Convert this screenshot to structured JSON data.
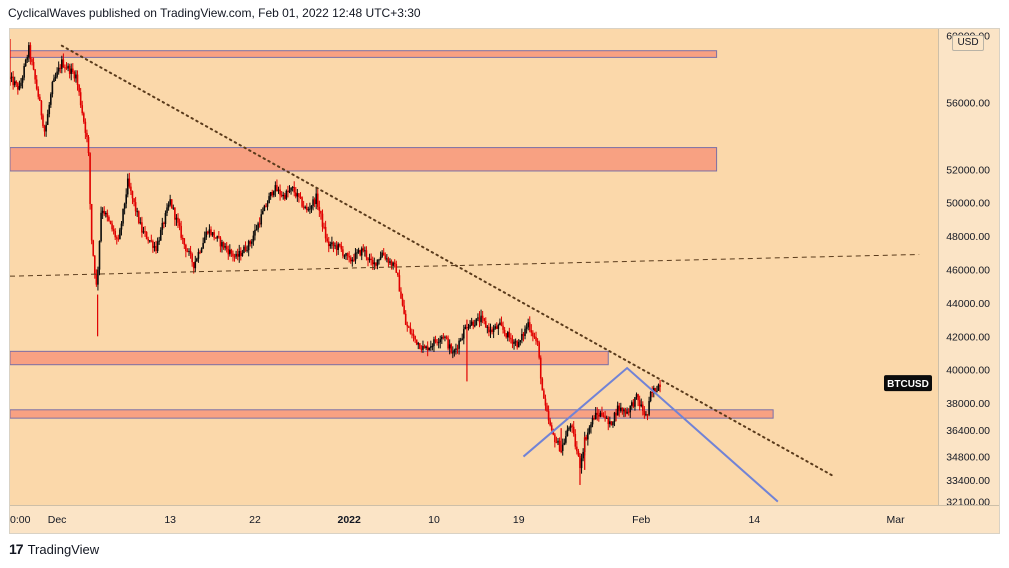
{
  "header": {
    "text": "CyclicalWaves published on TradingView.com, Feb 01, 2022 12:48 UTC+3:30"
  },
  "footer": {
    "brand": "TradingView"
  },
  "colors": {
    "plot_bg": "#fbd8aa",
    "axis_bg": "#fbe4c6",
    "zone_fill": "#f8a182",
    "zone_border": "#7b6fa6",
    "candle_up": "#0a0a0a",
    "candle_down": "#e00000",
    "trend_line": "#5a3b1c",
    "projection": "#7183d6",
    "text": "#131722"
  },
  "chart_data": {
    "type": "candlestick",
    "symbol": "BTCUSD",
    "currency": "USD",
    "ylim": [
      31900,
      60400
    ],
    "y_ticks": [
      "56000.00",
      "52000.00",
      "50000.00",
      "48000.00",
      "46000.00",
      "44000.00",
      "42000.00",
      "40000.00",
      "38000.00",
      "36400.00",
      "34800.00",
      "33400.00",
      "32100.00"
    ],
    "y_tick_values": [
      56000,
      52000,
      50000,
      48000,
      46000,
      44000,
      42000,
      40000,
      38000,
      36400,
      34800,
      33400,
      32100
    ],
    "top_tick_partial": "60000.00",
    "x_labels": [
      "0:00",
      "Dec",
      "13",
      "22",
      "2022",
      "10",
      "19",
      "Feb",
      "14",
      "Mar"
    ],
    "x_label_days": [
      -4.5,
      0,
      12,
      21,
      31,
      40,
      49,
      62,
      74,
      89
    ],
    "x_range_days": [
      -5,
      93.5
    ],
    "price_label": {
      "text": "BTCUSD",
      "value": 39200
    },
    "series": [
      {
        "name": "BTCUSD",
        "timeframe": "4h",
        "anchors_day_price": [
          [
            -5,
            57400
          ],
          [
            -4,
            56800
          ],
          [
            -3,
            59200
          ],
          [
            -2,
            56400
          ],
          [
            -1.3,
            54200
          ],
          [
            -0.5,
            57000
          ],
          [
            0.5,
            58400
          ],
          [
            2,
            57600
          ],
          [
            3.3,
            53400
          ],
          [
            3.6,
            48200
          ],
          [
            4.2,
            44800
          ],
          [
            4.7,
            49800
          ],
          [
            6.5,
            47600
          ],
          [
            7.5,
            51200
          ],
          [
            9,
            48300
          ],
          [
            10.5,
            47300
          ],
          [
            12,
            50100
          ],
          [
            13.5,
            47500
          ],
          [
            14.5,
            46300
          ],
          [
            16,
            48400
          ],
          [
            17.5,
            47500
          ],
          [
            19,
            46700
          ],
          [
            20.5,
            47600
          ],
          [
            22,
            49600
          ],
          [
            23,
            50900
          ],
          [
            24,
            50400
          ],
          [
            25,
            50800
          ],
          [
            26.5,
            49500
          ],
          [
            27.5,
            50300
          ],
          [
            28.7,
            47500
          ],
          [
            30,
            47300
          ],
          [
            31,
            46500
          ],
          [
            32.5,
            47200
          ],
          [
            33.5,
            46200
          ],
          [
            34.5,
            47000
          ],
          [
            36,
            46000
          ],
          [
            37,
            42700
          ],
          [
            38,
            41800
          ],
          [
            39,
            41200
          ],
          [
            41,
            42100
          ],
          [
            42,
            40900
          ],
          [
            43.5,
            42700
          ],
          [
            45,
            43000
          ],
          [
            46,
            42300
          ],
          [
            47,
            42600
          ],
          [
            48,
            41900
          ],
          [
            49,
            41500
          ],
          [
            50,
            42800
          ],
          [
            51,
            41500
          ],
          [
            51.6,
            38200
          ],
          [
            52.5,
            36200
          ],
          [
            53.5,
            35200
          ],
          [
            54.5,
            36800
          ],
          [
            55,
            35500
          ],
          [
            55.5,
            34300
          ],
          [
            56,
            35800
          ],
          [
            57,
            37200
          ],
          [
            58,
            37400
          ],
          [
            58.6,
            36600
          ],
          [
            59.5,
            37700
          ],
          [
            60.5,
            37500
          ],
          [
            61.5,
            38300
          ],
          [
            62.6,
            37100
          ],
          [
            63,
            38500
          ],
          [
            64,
            39200
          ]
        ],
        "wicks": [
          [
            -5,
            57000,
            59800
          ],
          [
            4.3,
            42000,
            44500
          ],
          [
            43.5,
            39300,
            43000
          ],
          [
            53.5,
            35000,
            36500
          ],
          [
            55.5,
            33100,
            35000
          ],
          [
            56,
            34000,
            36000
          ]
        ]
      }
    ],
    "zones": [
      {
        "from_day": -5,
        "to_day": 70,
        "low": 58700,
        "high": 59100
      },
      {
        "from_day": -5,
        "to_day": 70,
        "low": 51900,
        "high": 53300
      },
      {
        "from_day": -5,
        "to_day": 58.5,
        "low": 40300,
        "high": 41100
      },
      {
        "from_day": -5,
        "to_day": 76,
        "low": 37100,
        "high": 37600
      }
    ],
    "lines": [
      {
        "style": "dotted",
        "p1": [
          0.5,
          59400
        ],
        "p2": [
          82.5,
          33600
        ]
      },
      {
        "style": "dashed",
        "p1": [
          -5,
          45600
        ],
        "p2": [
          91.5,
          46900
        ]
      },
      {
        "style": "solid",
        "points": [
          [
            49.5,
            34800
          ],
          [
            60.5,
            40100
          ],
          [
            76.5,
            32100
          ]
        ]
      }
    ]
  }
}
